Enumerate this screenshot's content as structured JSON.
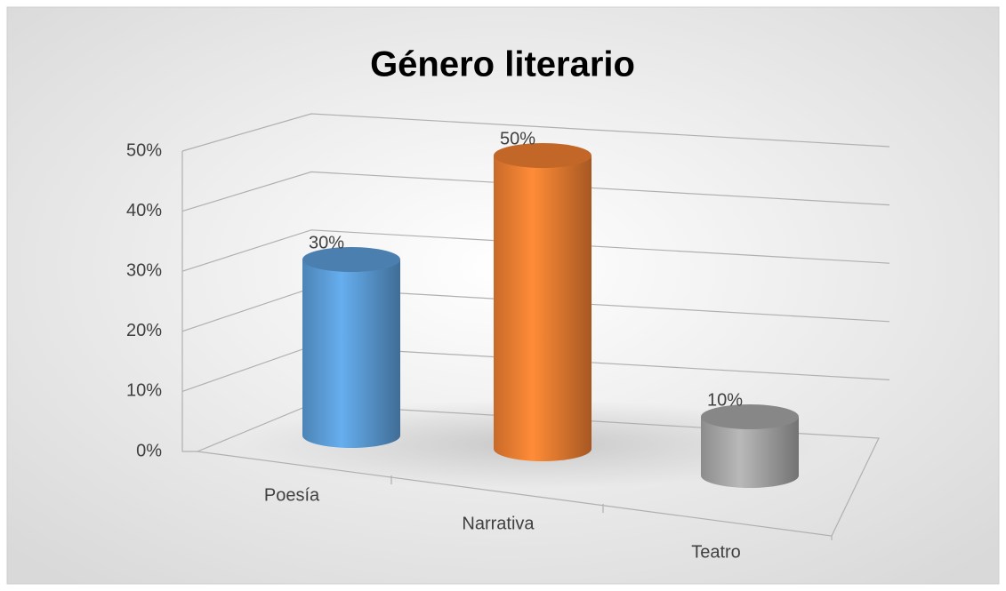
{
  "chart_data": {
    "type": "bar3d",
    "title": "Género literario",
    "categories": [
      "Poesía",
      "Narrativa",
      "Teatro"
    ],
    "values": [
      30,
      50,
      10
    ],
    "value_labels": [
      "30%",
      "50%",
      "10%"
    ],
    "colors": [
      "#5b9bd5",
      "#ed7d31",
      "#a5a5a5"
    ],
    "ylim": [
      0,
      50
    ],
    "yticks": [
      {
        "value": 0,
        "label": "0%"
      },
      {
        "value": 10,
        "label": "10%"
      },
      {
        "value": 20,
        "label": "20%"
      },
      {
        "value": 30,
        "label": "30%"
      },
      {
        "value": 40,
        "label": "40%"
      },
      {
        "value": 50,
        "label": "50%"
      }
    ],
    "grid": true
  }
}
